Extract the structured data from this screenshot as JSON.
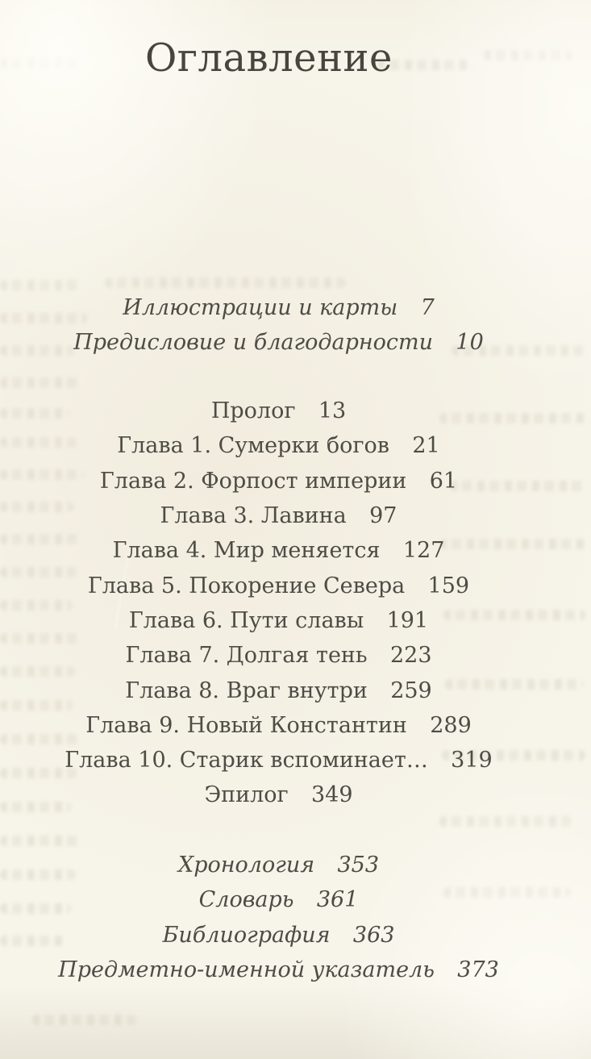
{
  "toc": {
    "title": "Оглавление",
    "front_matter": [
      {
        "label": "Иллюстрации и карты",
        "page": "7"
      },
      {
        "label": "Предисловие и благодарности",
        "page": "10"
      }
    ],
    "chapters": [
      {
        "label": "Пролог",
        "page": "13"
      },
      {
        "label": "Глава 1. Сумерки богов",
        "page": "21"
      },
      {
        "label": "Глава 2. Форпост империи",
        "page": "61"
      },
      {
        "label": "Глава 3. Лавина",
        "page": "97"
      },
      {
        "label": "Глава 4. Мир меняется",
        "page": "127"
      },
      {
        "label": "Глава 5. Покорение Севера",
        "page": "159"
      },
      {
        "label": "Глава 6. Пути славы",
        "page": "191"
      },
      {
        "label": "Глава 7. Долгая тень",
        "page": "223"
      },
      {
        "label": "Глава 8. Враг внутри",
        "page": "259"
      },
      {
        "label": "Глава 9. Новый Константин",
        "page": "289"
      },
      {
        "label": "Глава 10. Старик вспоминает…",
        "page": "319"
      },
      {
        "label": "Эпилог",
        "page": "349"
      }
    ],
    "back_matter": [
      {
        "label": "Хронология",
        "page": "353"
      },
      {
        "label": "Словарь",
        "page": "361"
      },
      {
        "label": "Библиография",
        "page": "363"
      },
      {
        "label": "Предметно-именной указатель",
        "page": "373"
      }
    ],
    "colors": {
      "paper": "#f7f4ea",
      "ink": "#4d4c45"
    }
  }
}
